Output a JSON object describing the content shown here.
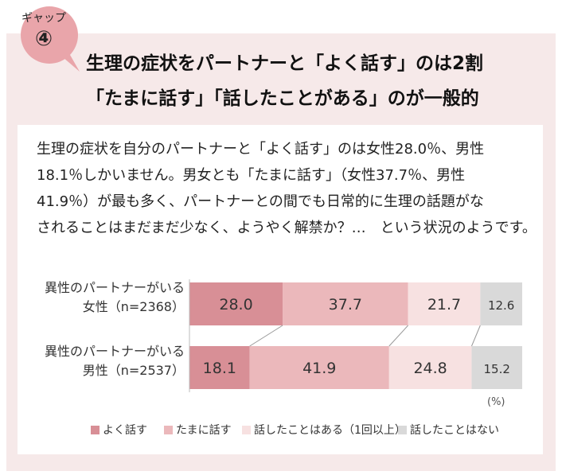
{
  "badge": {
    "label": "ギャップ",
    "number": "④"
  },
  "headline": {
    "line1": "生理の症状をパートナーと「よく話す」のは2割",
    "line2": "「たまに話す」「話したことがある」のが一般的"
  },
  "body_text": [
    "生理の症状を自分のパートナーと「よく話す」のは女性28.0％、男性",
    "18.1％しかいません。男女とも「たまに話す」（女性37.7％、男性",
    "41.9％）が最も多く、パートナーとの間でも日常的に生理の話題がな",
    "されることはまだまだ少なく、ようやく解禁か？…　という状況のようです。"
  ],
  "chart_data": {
    "type": "bar",
    "orientation": "horizontal",
    "stacked": true,
    "percent": true,
    "unit": "(%)",
    "xlim": [
      0,
      100
    ],
    "categories": [
      {
        "line1": "異性のパートナーがいる",
        "line2": "女性（n=2368）"
      },
      {
        "line1": "異性のパートナーがいる",
        "line2": "男性（n=2537）"
      }
    ],
    "series": [
      {
        "name": "よく話す",
        "color": "#d88f96",
        "values": [
          28.0,
          18.1
        ]
      },
      {
        "name": "たまに話す",
        "color": "#ebb8bb",
        "values": [
          37.7,
          41.9
        ]
      },
      {
        "name": "話したことはある（1回以上）",
        "color": "#f7e1e1",
        "values": [
          21.7,
          24.8
        ]
      },
      {
        "name": "話したことはない",
        "color": "#d9d9d9",
        "values": [
          12.6,
          15.2
        ]
      }
    ],
    "labels": [
      [
        "28.0",
        "37.7",
        "21.7",
        "12.6"
      ],
      [
        "18.1",
        "41.9",
        "24.8",
        "15.2"
      ]
    ],
    "connector_lines": true,
    "legend_position": "bottom"
  }
}
